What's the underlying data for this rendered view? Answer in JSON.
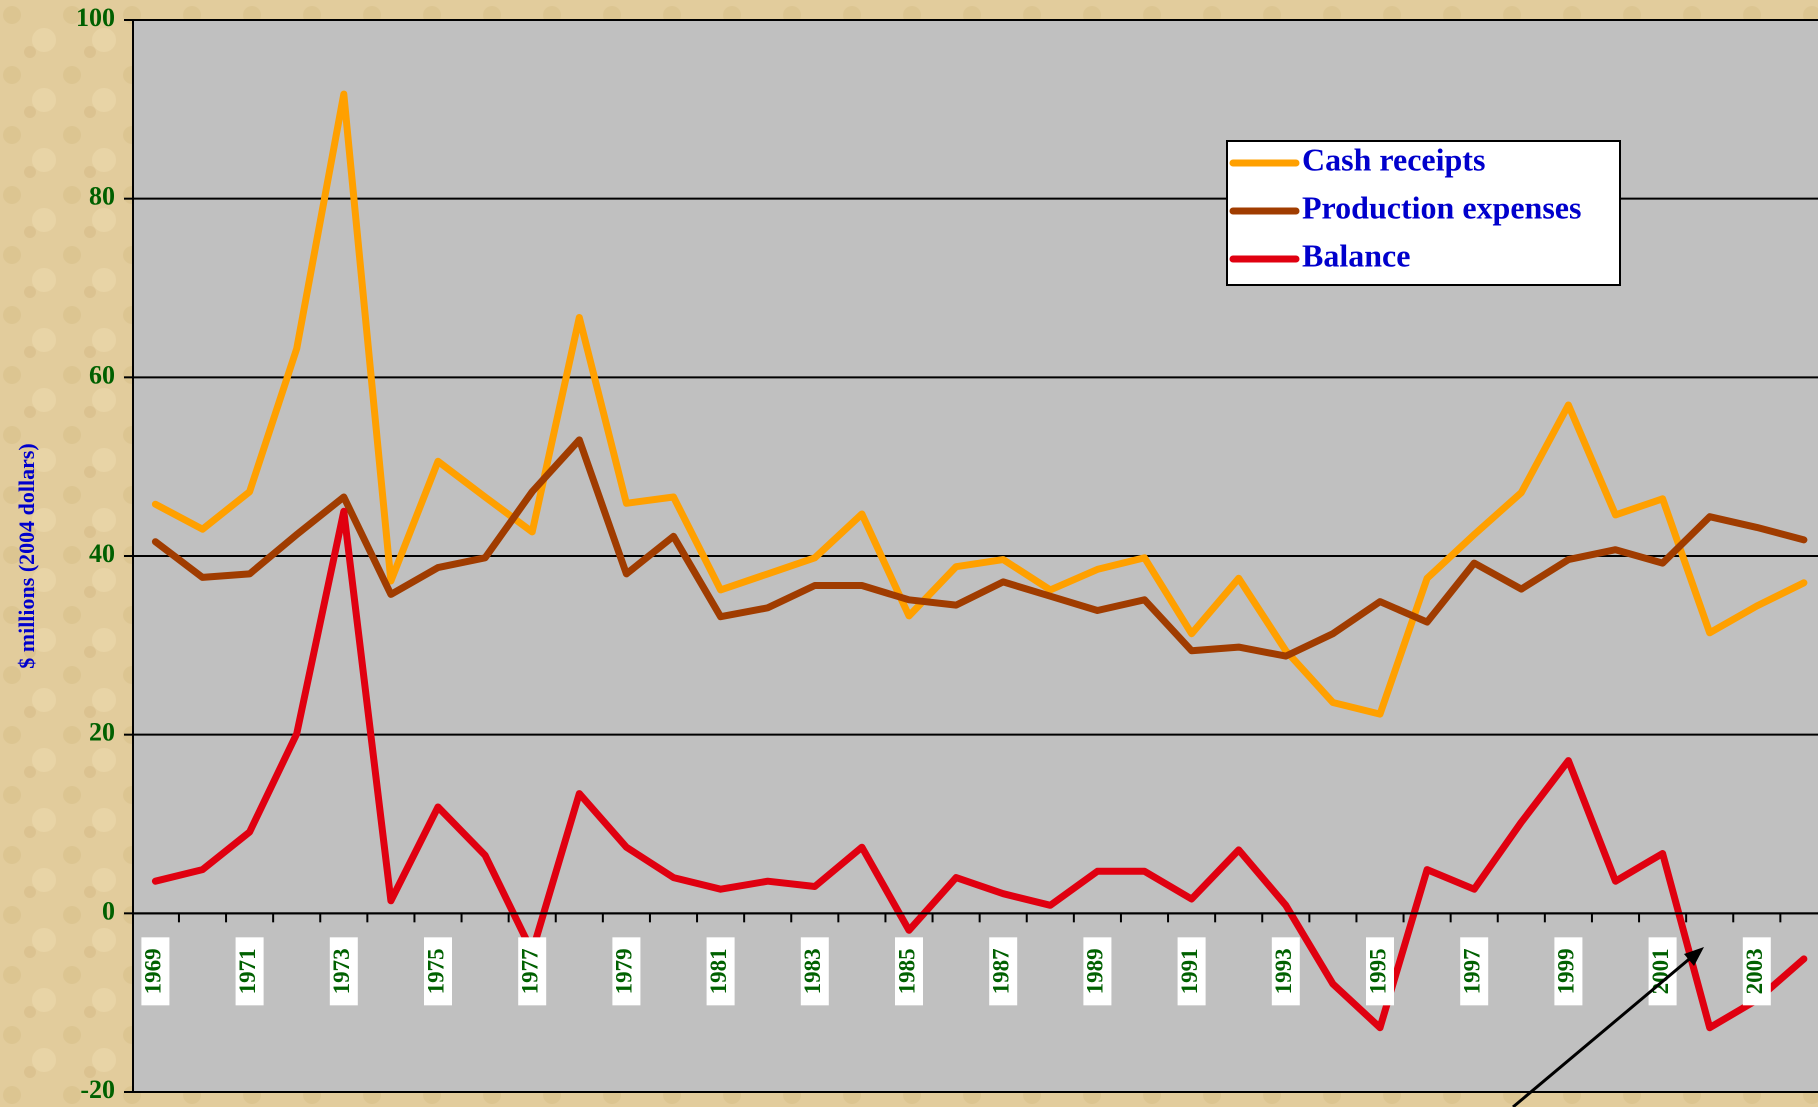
{
  "chart_data": {
    "type": "line",
    "ylabel": "$ millions (2004 dollars)",
    "categories": [
      "1969",
      null,
      "1971",
      null,
      "1973",
      null,
      "1975",
      null,
      "1977",
      null,
      "1979",
      null,
      "1981",
      null,
      "1983",
      null,
      "1985",
      null,
      "1987",
      null,
      "1989",
      null,
      "1991",
      null,
      "1993",
      null,
      "1995",
      null,
      "1997",
      null,
      "1999",
      null,
      "2001",
      null,
      "2003",
      null
    ],
    "series": [
      {
        "name": "Cash receipts",
        "color": "#ffa000",
        "values": [
          45.8,
          43,
          47.2,
          63.2,
          91.7,
          37.2,
          50.6,
          46.6,
          42.7,
          66.7,
          45.9,
          46.6,
          36.2,
          38,
          39.8,
          44.7,
          33.3,
          38.8,
          39.6,
          36.2,
          38.5,
          39.8,
          31.3,
          37.5,
          29.4,
          23.6,
          22.3,
          37.5,
          42.4,
          47.1,
          56.9,
          44.6,
          46.4,
          31.4,
          34.4,
          37
        ]
      },
      {
        "name": "Production expenses",
        "color": "#a03c00",
        "values": [
          41.6,
          37.6,
          38,
          42.4,
          46.6,
          35.7,
          38.7,
          39.8,
          47.2,
          53,
          38,
          42.2,
          33.2,
          34.2,
          36.7,
          36.7,
          35.1,
          34.5,
          37.1,
          35.5,
          33.9,
          35.1,
          29.4,
          29.8,
          28.8,
          31.3,
          34.9,
          32.6,
          39.2,
          36.3,
          39.6,
          40.7,
          39.2,
          44.4,
          43.2,
          41.8
        ]
      },
      {
        "name": "Balance",
        "color": "#e00010",
        "values": [
          3.6,
          4.9,
          9.1,
          20.1,
          45,
          1.4,
          11.9,
          6.5,
          -4.3,
          13.4,
          7.4,
          4,
          2.7,
          3.6,
          3,
          7.4,
          -1.9,
          4,
          2.2,
          0.9,
          4.7,
          4.7,
          1.6,
          7.1,
          0.9,
          -7.9,
          -12.8,
          4.9,
          2.7,
          10.2,
          17.1,
          3.6,
          6.7,
          -12.8,
          -9.7,
          -5.1
        ]
      }
    ],
    "ylim": [
      -20,
      100
    ],
    "yticks": [
      -20,
      0,
      20,
      40,
      60,
      80,
      100
    ],
    "grid": true
  }
}
